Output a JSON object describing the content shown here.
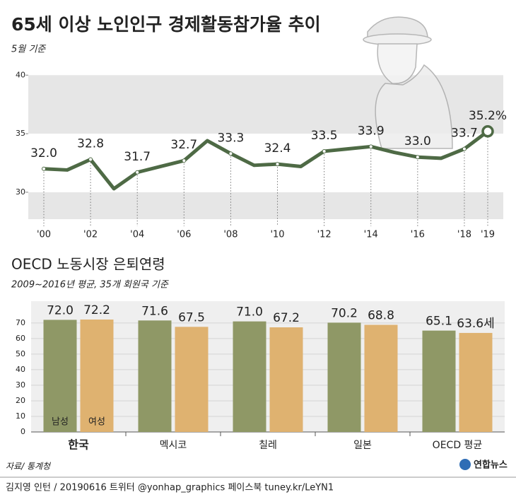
{
  "chart_data": [
    {
      "type": "line",
      "title": "65세 이상 노인인구 경제활동참가율 추이",
      "subtitle": "5월 기준",
      "categories": [
        "'00",
        null,
        "'02",
        null,
        "'04",
        null,
        "'06",
        null,
        "'08",
        null,
        "'10",
        null,
        "'12",
        null,
        "'14",
        null,
        "'16",
        null,
        "'18",
        "'19"
      ],
      "values": [
        32.0,
        31.9,
        32.8,
        30.3,
        31.7,
        32.2,
        32.7,
        34.4,
        33.3,
        32.3,
        32.4,
        32.2,
        33.5,
        33.7,
        33.9,
        33.4,
        33.0,
        32.9,
        33.7,
        35.2
      ],
      "value_labels": [
        "32.0",
        null,
        "32.8",
        null,
        "31.7",
        null,
        "32.7",
        null,
        "33.3",
        null,
        "32.4",
        null,
        "33.5",
        null,
        "33.9",
        null,
        "33.0",
        null,
        "33.7",
        "35.2%"
      ],
      "color": "#4e6a45",
      "ylim": [
        27.7,
        40.5
      ],
      "yticks": [
        40,
        35,
        30
      ]
    },
    {
      "type": "bar",
      "title": "OECD 노동시장 은퇴연령",
      "subtitle": "2009~2016년 평균, 35개 회원국 기준",
      "categories": [
        "한국",
        "멕시코",
        "칠레",
        "일본",
        "OECD 평균"
      ],
      "series": [
        {
          "name": "남성",
          "color": "#8f9866",
          "values": [
            72.0,
            71.6,
            71.0,
            70.2,
            65.1
          ],
          "value_labels": [
            "72.0",
            "71.6",
            "71.0",
            "70.2",
            "65.1"
          ]
        },
        {
          "name": "여성",
          "color": "#dfb270",
          "values": [
            72.2,
            67.5,
            67.2,
            68.8,
            63.6
          ],
          "value_labels": [
            "72.2",
            "67.5",
            "67.2",
            "68.8",
            "63.6세"
          ]
        }
      ],
      "ylim": [
        0,
        84
      ],
      "yticks": [
        0,
        10,
        20,
        30,
        40,
        50,
        60,
        70
      ]
    }
  ],
  "source": "자료/ 통계청",
  "logo": "연합뉴스",
  "credit": "김지영 인턴 / 20190616 트위터 @yonhap_graphics  페이스북 tuney.kr/LeYN1"
}
